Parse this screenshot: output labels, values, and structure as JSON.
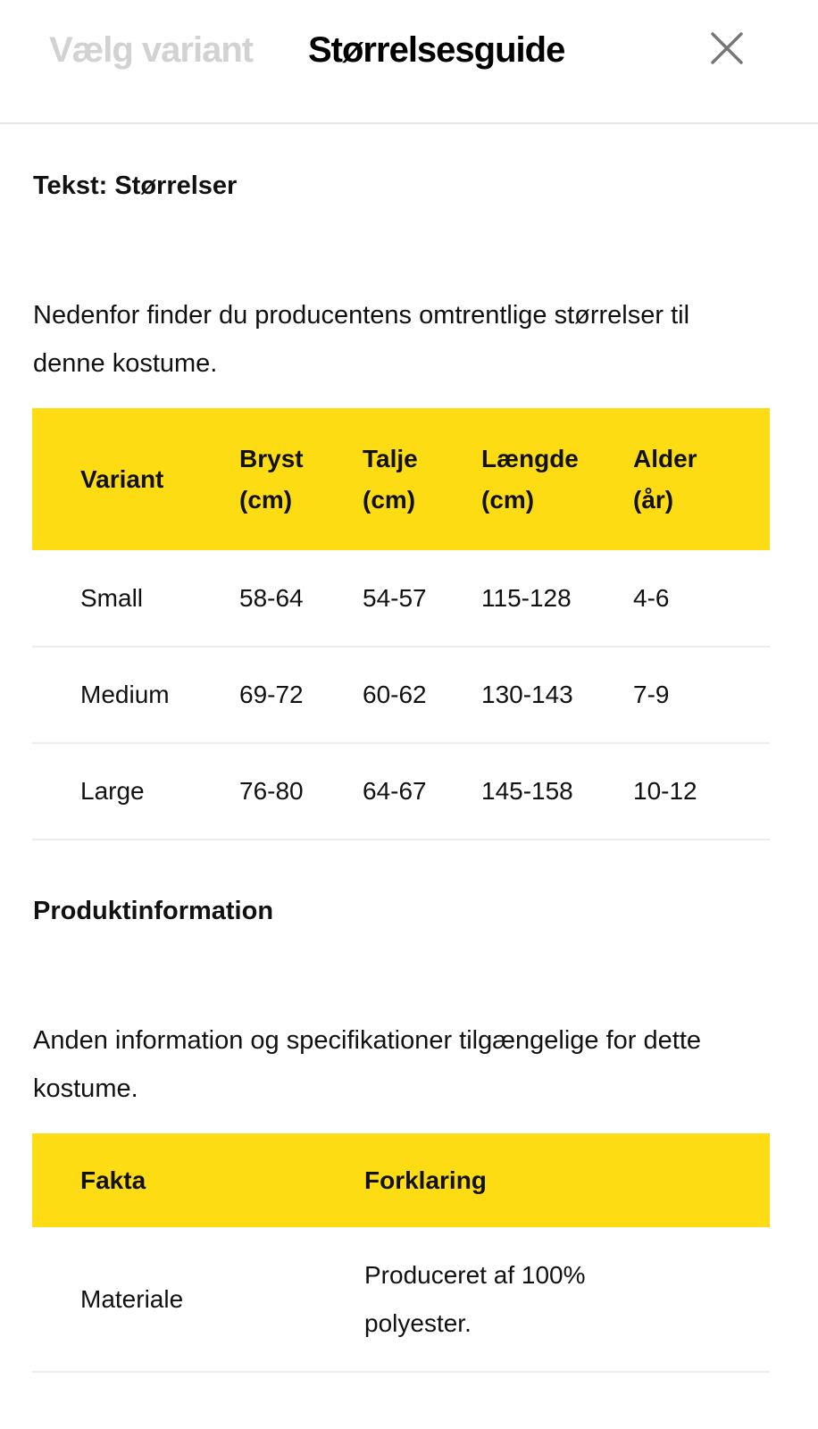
{
  "header": {
    "tabs": [
      {
        "label": "Vælg variant",
        "active": false
      },
      {
        "label": "Størrelsesguide",
        "active": true
      }
    ],
    "close_icon": "close-icon"
  },
  "sizes": {
    "title": "Tekst: Størrelser",
    "description": "Nedenfor finder du producentens omtrentlige størrelser til denne kostume.",
    "columns": [
      [
        "Variant",
        ""
      ],
      [
        "Bryst",
        "(cm)"
      ],
      [
        "Talje",
        "(cm)"
      ],
      [
        "Længde",
        "(cm)"
      ],
      [
        "Alder",
        "(år)"
      ]
    ],
    "rows": [
      [
        "Small",
        "58-64",
        "54-57",
        "115-128",
        "4-6"
      ],
      [
        "Medium",
        "69-72",
        "60-62",
        "130-143",
        "7-9"
      ],
      [
        "Large",
        "76-80",
        "64-67",
        "145-158",
        "10-12"
      ]
    ]
  },
  "product": {
    "title": "Produktinformation",
    "description": "Anden information og specifikationer tilgængelige for dette kostume.",
    "columns": [
      "Fakta",
      "Forklaring"
    ],
    "rows": [
      [
        "Materiale",
        "Produceret af 100% polyester."
      ]
    ]
  },
  "colors": {
    "accent": "#fddc13",
    "inactive_tab": "#d2d2d2"
  }
}
